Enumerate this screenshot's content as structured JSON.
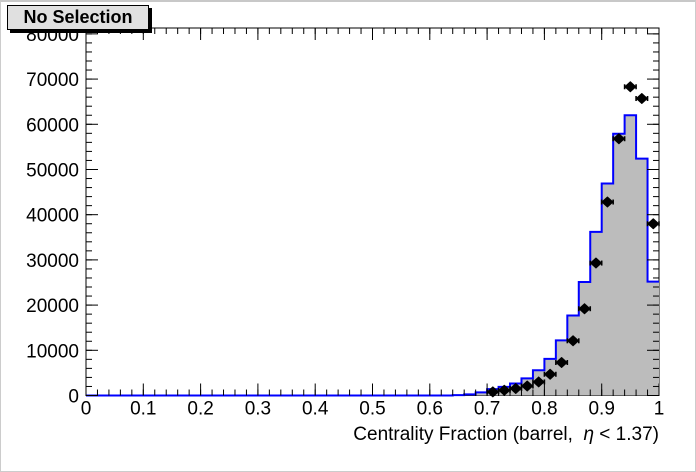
{
  "chart_data": {
    "type": "histogram_with_points",
    "title": "No Selection",
    "xlabel": "Centrality Fraction (barrel,  η < 1.37)",
    "ylabel": "",
    "xlim": [
      0,
      1
    ],
    "ylim": [
      0,
      81300
    ],
    "grid": false,
    "legend": false,
    "x_ticks": [
      {
        "v": 0.0,
        "label": "0"
      },
      {
        "v": 0.1,
        "label": "0.1"
      },
      {
        "v": 0.2,
        "label": "0.2"
      },
      {
        "v": 0.3,
        "label": "0.3"
      },
      {
        "v": 0.4,
        "label": "0.4"
      },
      {
        "v": 0.5,
        "label": "0.5"
      },
      {
        "v": 0.6,
        "label": "0.6"
      },
      {
        "v": 0.7,
        "label": "0.7"
      },
      {
        "v": 0.8,
        "label": "0.8"
      },
      {
        "v": 0.9,
        "label": "0.9"
      },
      {
        "v": 1.0,
        "label": "1"
      }
    ],
    "y_ticks": [
      {
        "v": 0,
        "label": "0"
      },
      {
        "v": 10000,
        "label": "10000"
      },
      {
        "v": 20000,
        "label": "20000"
      },
      {
        "v": 30000,
        "label": "30000"
      },
      {
        "v": 40000,
        "label": "40000"
      },
      {
        "v": 50000,
        "label": "50000"
      },
      {
        "v": 60000,
        "label": "60000"
      },
      {
        "v": 70000,
        "label": "70000"
      },
      {
        "v": 80000,
        "label": "80000"
      }
    ],
    "x_minor_step": 0.02,
    "y_minor_step": 2000,
    "histogram": {
      "name": "filled-histogram",
      "fill_color": "#bcbcbc",
      "line_color": "#0000ff",
      "bin_width": 0.02,
      "first_bin_low": 0.64,
      "values": [
        80,
        250,
        700,
        1400,
        1900,
        2650,
        3800,
        5600,
        8100,
        12200,
        17700,
        25100,
        36200,
        46900,
        57900,
        62000,
        52400,
        25200
      ]
    },
    "points": {
      "name": "data-points",
      "color": "#000000",
      "marker": "diamond",
      "x_error": 0.01,
      "x": [
        0.71,
        0.73,
        0.75,
        0.77,
        0.79,
        0.81,
        0.83,
        0.85,
        0.87,
        0.89,
        0.91,
        0.93,
        0.95,
        0.97,
        0.99
      ],
      "y": [
        800,
        1150,
        1550,
        2100,
        3000,
        4700,
        7300,
        12100,
        19200,
        29300,
        42800,
        56800,
        68300,
        65700,
        38000
      ]
    }
  }
}
